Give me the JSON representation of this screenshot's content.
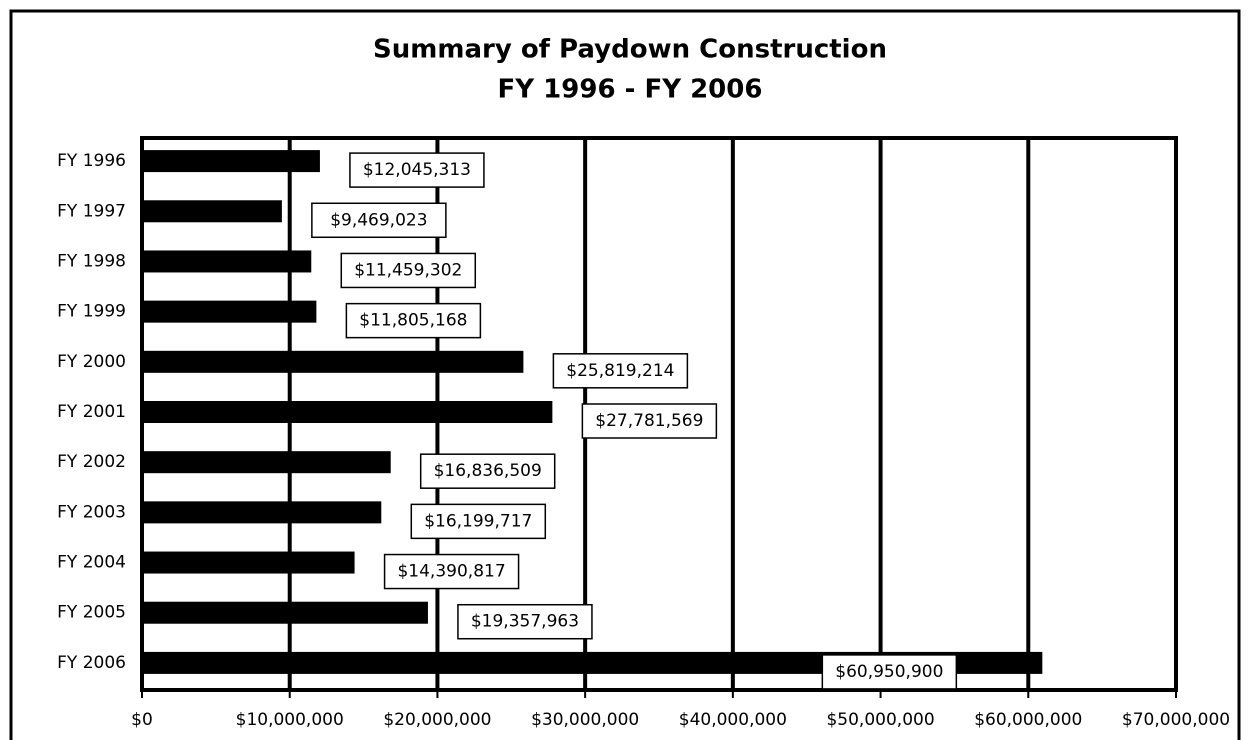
{
  "chart_data": {
    "type": "bar",
    "orientation": "horizontal",
    "title": "Summary of Paydown Construction",
    "subtitle": "FY 1996 - FY 2006",
    "categories": [
      "FY 1996",
      "FY 1997",
      "FY 1998",
      "FY 1999",
      "FY 2000",
      "FY 2001",
      "FY 2002",
      "FY 2003",
      "FY 2004",
      "FY 2005",
      "FY 2006"
    ],
    "values": [
      12045313,
      9469023,
      11459302,
      11805168,
      25819214,
      27781569,
      16836509,
      16199717,
      14390817,
      19357963,
      60950900
    ],
    "value_labels": [
      "$12,045,313",
      "$9,469,023",
      "$11,459,302",
      "$11,805,168",
      "$25,819,214",
      "$27,781,569",
      "$16,836,509",
      "$16,199,717",
      "$14,390,817",
      "$19,357,963",
      "$60,950,900"
    ],
    "color": "#000000",
    "xlim": [
      0,
      70000000
    ],
    "xticks": [
      {
        "value": 0,
        "label": "$0"
      },
      {
        "value": 10000000,
        "label": "$10,000,000"
      },
      {
        "value": 20000000,
        "label": "$20,000,000"
      },
      {
        "value": 30000000,
        "label": "$30,000,000"
      },
      {
        "value": 40000000,
        "label": "$40,000,000"
      },
      {
        "value": 50000000,
        "label": "$50,000,000"
      },
      {
        "value": 60000000,
        "label": "$60,000,000"
      },
      {
        "value": 70000000,
        "label": "$70,000,000"
      }
    ],
    "grid": true
  }
}
